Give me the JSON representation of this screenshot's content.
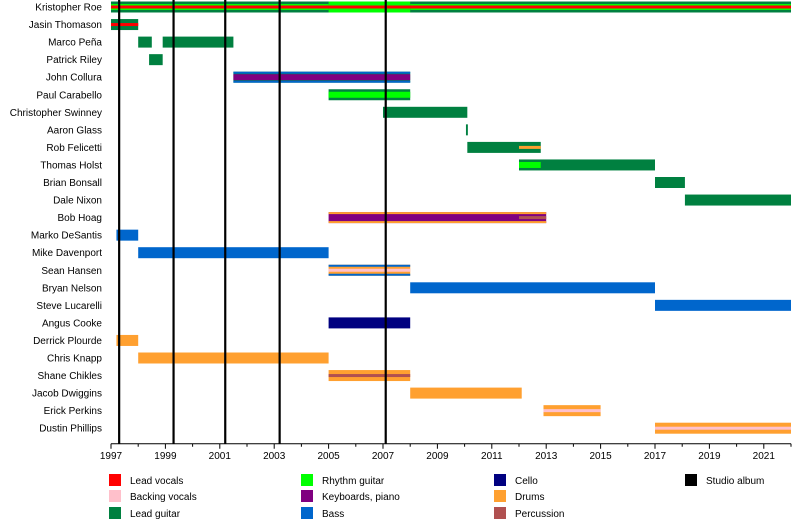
{
  "chart_data": {
    "type": "timeline",
    "title": "",
    "x_range": [
      1997,
      2022
    ],
    "x_ticks": [
      "1997",
      "1999",
      "2001",
      "2003",
      "2005",
      "2007",
      "2009",
      "2011",
      "2013",
      "2015",
      "2017",
      "2019",
      "2021"
    ],
    "minor_ticks": true,
    "studio_albums": [
      1997.3,
      1999.3,
      2001.2,
      2003.2,
      2007.1
    ],
    "roles": {
      "lead_vocals": {
        "label": "Lead vocals",
        "color": "#ff0000"
      },
      "backing_vocals": {
        "label": "Backing vocals",
        "color": "#ffc0cb"
      },
      "lead_guitar": {
        "label": "Lead guitar",
        "color": "#008040"
      },
      "rhythm_guitar": {
        "label": "Rhythm guitar",
        "color": "#00ff00"
      },
      "keyboards": {
        "label": "Keyboards, piano",
        "color": "#800080"
      },
      "bass": {
        "label": "Bass",
        "color": "#0066cc"
      },
      "cello": {
        "label": "Cello",
        "color": "#000080"
      },
      "drums": {
        "label": "Drums",
        "color": "#ffa030"
      },
      "percussion": {
        "label": "Percussion",
        "color": "#b05050"
      },
      "studio_album": {
        "label": "Studio album",
        "color": "#000000"
      }
    },
    "legend_order": [
      [
        "lead_vocals",
        "backing_vocals",
        "lead_guitar"
      ],
      [
        "rhythm_guitar",
        "keyboards",
        "bass"
      ],
      [
        "cello",
        "drums",
        "percussion"
      ],
      [
        "studio_album"
      ]
    ],
    "members": [
      {
        "name": "Kristopher Roe",
        "bars": [
          {
            "start": 1997,
            "end": 2022,
            "color": "lead_guitar"
          },
          {
            "start": 1997,
            "end": 2005,
            "color": "rhythm_guitar",
            "inner": true
          },
          {
            "start": 2005,
            "end": 2008,
            "color": "rhythm_guitar"
          },
          {
            "start": 2008,
            "end": 2022,
            "color": "rhythm_guitar",
            "inner": true
          },
          {
            "start": 1997,
            "end": 2022,
            "color": "lead_vocals",
            "stripe": true
          }
        ]
      },
      {
        "name": "Jasin Thomason",
        "bars": [
          {
            "start": 1997,
            "end": 1998,
            "color": "lead_guitar"
          },
          {
            "start": 1997,
            "end": 1998,
            "color": "lead_vocals",
            "stripe": true
          }
        ]
      },
      {
        "name": "Marco Peña",
        "bars": [
          {
            "start": 1998,
            "end": 1998.5,
            "color": "lead_guitar"
          },
          {
            "start": 1998.9,
            "end": 2001.5,
            "color": "lead_guitar"
          }
        ]
      },
      {
        "name": "Patrick Riley",
        "bars": [
          {
            "start": 1998.4,
            "end": 1998.9,
            "color": "lead_guitar"
          }
        ]
      },
      {
        "name": "John Collura",
        "bars": [
          {
            "start": 2001.5,
            "end": 2008,
            "color": "lead_guitar"
          },
          {
            "start": 2001.5,
            "end": 2008,
            "color": "keyboards",
            "inner": true
          },
          {
            "start": 2001.5,
            "end": 2008,
            "color": "bass",
            "outline": true
          }
        ]
      },
      {
        "name": "Paul Carabello",
        "bars": [
          {
            "start": 2005,
            "end": 2008,
            "color": "lead_guitar"
          },
          {
            "start": 2005,
            "end": 2008,
            "color": "rhythm_guitar",
            "inner": true
          }
        ]
      },
      {
        "name": "Christopher Swinney",
        "bars": [
          {
            "start": 2007,
            "end": 2010.1,
            "color": "lead_guitar"
          }
        ]
      },
      {
        "name": "Aaron Glass",
        "bars": [
          {
            "start": 2010.05,
            "end": 2010.12,
            "color": "lead_guitar"
          }
        ]
      },
      {
        "name": "Rob Felicetti",
        "bars": [
          {
            "start": 2010.1,
            "end": 2012.8,
            "color": "lead_guitar"
          },
          {
            "start": 2012,
            "end": 2012.8,
            "color": "drums",
            "stripe": true
          }
        ]
      },
      {
        "name": "Thomas Holst",
        "bars": [
          {
            "start": 2012,
            "end": 2017,
            "color": "lead_guitar"
          },
          {
            "start": 2012,
            "end": 2012.8,
            "color": "rhythm_guitar",
            "inner": true
          }
        ]
      },
      {
        "name": "Brian Bonsall",
        "bars": [
          {
            "start": 2017,
            "end": 2018.1,
            "color": "lead_guitar"
          }
        ]
      },
      {
        "name": "Dale Nixon",
        "bars": [
          {
            "start": 2018.1,
            "end": 2022,
            "color": "lead_guitar"
          }
        ]
      },
      {
        "name": "Bob Hoag",
        "bars": [
          {
            "start": 2005,
            "end": 2013,
            "color": "keyboards"
          },
          {
            "start": 2005,
            "end": 2013,
            "color": "drums",
            "outline": true
          },
          {
            "start": 2012,
            "end": 2013,
            "color": "percussion",
            "stripe": true
          }
        ]
      },
      {
        "name": "Marko DeSantis",
        "bars": [
          {
            "start": 1997.2,
            "end": 1998,
            "color": "bass"
          }
        ]
      },
      {
        "name": "Mike Davenport",
        "bars": [
          {
            "start": 1998,
            "end": 2005,
            "color": "bass"
          }
        ]
      },
      {
        "name": "Sean Hansen",
        "bars": [
          {
            "start": 2005,
            "end": 2008,
            "color": "drums"
          },
          {
            "start": 2005,
            "end": 2008,
            "color": "bass",
            "outline": true
          },
          {
            "start": 2005,
            "end": 2008,
            "color": "backing_vocals",
            "stripe": true
          }
        ]
      },
      {
        "name": "Bryan Nelson",
        "bars": [
          {
            "start": 2008,
            "end": 2017,
            "color": "bass"
          }
        ]
      },
      {
        "name": "Steve Lucarelli",
        "bars": [
          {
            "start": 2017,
            "end": 2022,
            "color": "bass"
          }
        ]
      },
      {
        "name": "Angus Cooke",
        "bars": [
          {
            "start": 2005,
            "end": 2008,
            "color": "cello"
          }
        ]
      },
      {
        "name": "Derrick Plourde",
        "bars": [
          {
            "start": 1997.2,
            "end": 1998,
            "color": "drums"
          }
        ]
      },
      {
        "name": "Chris Knapp",
        "bars": [
          {
            "start": 1998,
            "end": 2005,
            "color": "drums"
          }
        ]
      },
      {
        "name": "Shane Chikles",
        "bars": [
          {
            "start": 2005,
            "end": 2008,
            "color": "drums"
          },
          {
            "start": 2005,
            "end": 2008,
            "color": "percussion",
            "stripe": true
          }
        ]
      },
      {
        "name": "Jacob Dwiggins",
        "bars": [
          {
            "start": 2008,
            "end": 2012.1,
            "color": "drums"
          }
        ]
      },
      {
        "name": "Erick Perkins",
        "bars": [
          {
            "start": 2012.9,
            "end": 2015,
            "color": "drums"
          },
          {
            "start": 2012.9,
            "end": 2015,
            "color": "backing_vocals",
            "stripe": true
          }
        ]
      },
      {
        "name": "Dustin Phillips",
        "bars": [
          {
            "start": 2017,
            "end": 2022,
            "color": "drums"
          },
          {
            "start": 2017,
            "end": 2022,
            "color": "backing_vocals",
            "stripe": true
          }
        ]
      }
    ]
  }
}
